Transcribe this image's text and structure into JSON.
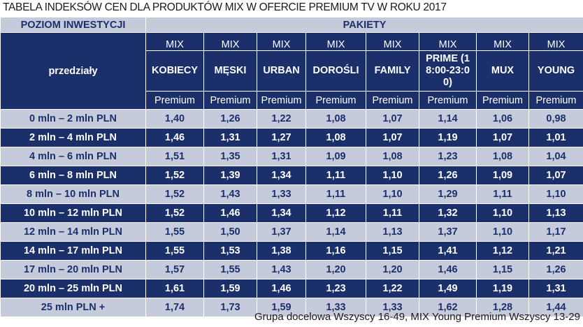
{
  "title": "TABELA INDEKSÓW CEN DLA PRODUKTÓW MIX W OFERCIE PREMIUM TV W ROKU 2017",
  "header": {
    "left": "POZIOM INWESTYCJI",
    "right": "PAKIETY",
    "range_label": "przedziały"
  },
  "packages": [
    {
      "prefix": "MIX",
      "name": "KOBIECY",
      "suffix": "Premium"
    },
    {
      "prefix": "MIX",
      "name": "MĘSKI",
      "suffix": "Premium"
    },
    {
      "prefix": "MIX",
      "name": "URBAN",
      "suffix": "Premium"
    },
    {
      "prefix": "MIX",
      "name": "DOROŚLI",
      "suffix": "Premium"
    },
    {
      "prefix": "MIX",
      "name": "FAMILY",
      "suffix": "Premium"
    },
    {
      "prefix": "MIX",
      "name": "PRIME (18:00-23:00)",
      "suffix": "Premium"
    },
    {
      "prefix": "MIX",
      "name": "MUX",
      "suffix": "Premium"
    },
    {
      "prefix": "MIX",
      "name": "YOUNG",
      "suffix": "Premium"
    }
  ],
  "rows": [
    {
      "range": "0 mln – 2 mln PLN",
      "values": [
        "1,40",
        "1,26",
        "1,22",
        "1,08",
        "1,07",
        "1,14",
        "1,06",
        "0,98"
      ]
    },
    {
      "range": "2 mln – 4 mln PLN",
      "values": [
        "1,46",
        "1,31",
        "1,27",
        "1,08",
        "1,07",
        "1,19",
        "1,07",
        "1,01"
      ]
    },
    {
      "range": "4 mln – 6 mln PLN",
      "values": [
        "1,51",
        "1,35",
        "1,31",
        "1,09",
        "1,08",
        "1,23",
        "1,08",
        "1,04"
      ]
    },
    {
      "range": "6 mln – 8 mln PLN",
      "values": [
        "1,52",
        "1,39",
        "1,34",
        "1,11",
        "1,10",
        "1,26",
        "1,09",
        "1,07"
      ]
    },
    {
      "range": "8 mln – 10 mln PLN",
      "values": [
        "1,52",
        "1,43",
        "1,33",
        "1,11",
        "1,10",
        "1,29",
        "1,11",
        "1,10"
      ]
    },
    {
      "range": "10 mln – 12 mln PLN",
      "values": [
        "1,52",
        "1,46",
        "1,34",
        "1,12",
        "1,11",
        "1,32",
        "1,10",
        "1,13"
      ]
    },
    {
      "range": "12 mln – 14 mln PLN",
      "values": [
        "1,55",
        "1,50",
        "1,37",
        "1,14",
        "1,13",
        "1,37",
        "1,10",
        "1,17"
      ]
    },
    {
      "range": "14 mln – 17 mln PLN",
      "values": [
        "1,55",
        "1,53",
        "1,38",
        "1,16",
        "1,15",
        "1,41",
        "1,12",
        "1,21"
      ]
    },
    {
      "range": "17 mln – 20 mln PLN",
      "values": [
        "1,57",
        "1,55",
        "1,43",
        "1,20",
        "1,20",
        "1,46",
        "1,15",
        "1,26"
      ]
    },
    {
      "range": "20 mln – 25 mln PLN",
      "values": [
        "1,61",
        "1,59",
        "1,46",
        "1,23",
        "1,22",
        "1,49",
        "1,19",
        "1,31"
      ]
    },
    {
      "range": "25 mln PLN +",
      "values": [
        "1,74",
        "1,73",
        "1,59",
        "1,33",
        "1,33",
        "1,62",
        "1,28",
        "1,44"
      ]
    }
  ],
  "footnote": "Grupa docelowa Wszyscy 16-49, MIX Young Premium Wszyscy 13-29",
  "colors": {
    "dark": "#1b2f6b",
    "light": "#c6cbdc"
  }
}
